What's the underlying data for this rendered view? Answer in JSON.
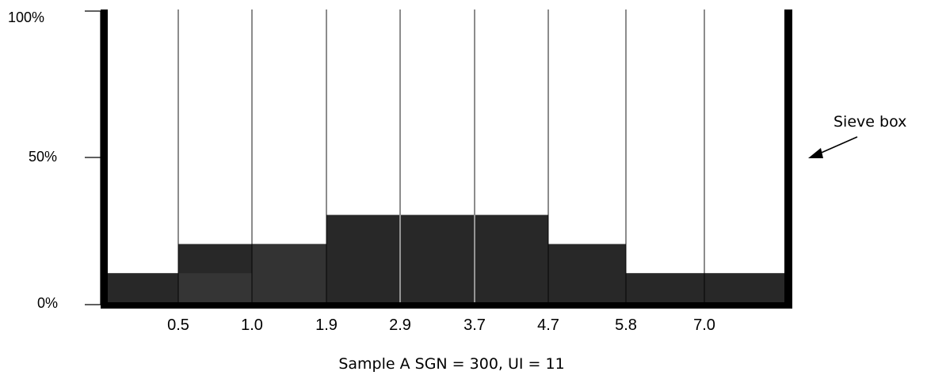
{
  "chart_data": {
    "type": "bar",
    "caption": "Sample A SGN = 300, UI = 11",
    "y_axis": {
      "ticks": [
        "100%",
        "50%",
        "0%"
      ],
      "ylim": [
        0,
        100
      ]
    },
    "boundaries": [
      "0.5",
      "1.0",
      "1.9",
      "2.9",
      "3.7",
      "4.7",
      "5.8",
      "7.0"
    ],
    "values": [
      10,
      20,
      20,
      30,
      30,
      30,
      20,
      10,
      10
    ],
    "inner_values": [
      null,
      10,
      null,
      null,
      null,
      null,
      null,
      null,
      null
    ],
    "colors": {
      "bar": "#282828",
      "bar_inner": "#353535",
      "frame": "#000000",
      "divider": "#000000"
    },
    "annotation": {
      "text": "Sieve box",
      "arrow": "pointing to right wall of the box"
    }
  }
}
